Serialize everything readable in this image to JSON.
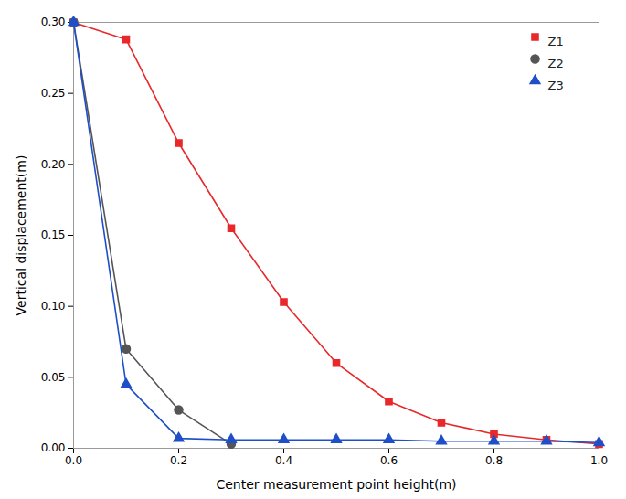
{
  "chart_data": {
    "type": "line",
    "xlabel": "Center measurement point height(m)",
    "ylabel": "Vertical displacement(m)",
    "xlim": [
      0.0,
      1.0
    ],
    "ylim": [
      0.0,
      0.3
    ],
    "xticks": [
      {
        "value": 0.0,
        "label": "0.0"
      },
      0.2,
      0.4,
      0.6,
      0.8,
      {
        "value": 1.0,
        "label": "1.0"
      }
    ],
    "yticks": [
      {
        "value": 0.0,
        "label": "0.00"
      },
      0.05,
      {
        "value": 0.1,
        "label": "0.10"
      },
      0.15,
      {
        "value": 0.2,
        "label": "0.20"
      },
      0.25,
      {
        "value": 0.3,
        "label": "0.30"
      }
    ],
    "legend": "upper right",
    "grid": false,
    "series": [
      {
        "name": "Z1",
        "color": "#e8282a",
        "marker": "square",
        "x": [
          0.0,
          0.1,
          0.2,
          0.3,
          0.4,
          0.5,
          0.6,
          0.7,
          0.8,
          0.9,
          1.0
        ],
        "values": [
          0.3,
          0.288,
          0.215,
          0.155,
          0.103,
          0.06,
          0.033,
          0.018,
          0.01,
          0.006,
          0.003
        ]
      },
      {
        "name": "Z2",
        "color": "#555555",
        "marker": "circle",
        "x": [
          0.0,
          0.1,
          0.2,
          0.3
        ],
        "values": [
          0.3,
          0.07,
          0.027,
          0.003
        ]
      },
      {
        "name": "Z3",
        "color": "#1e4fc8",
        "marker": "triangle",
        "x": [
          0.0,
          0.1,
          0.2,
          0.3,
          0.4,
          0.5,
          0.6,
          0.7,
          0.8,
          0.9,
          1.0
        ],
        "values": [
          0.3,
          0.045,
          0.007,
          0.006,
          0.006,
          0.006,
          0.006,
          0.005,
          0.005,
          0.005,
          0.004
        ]
      }
    ]
  }
}
